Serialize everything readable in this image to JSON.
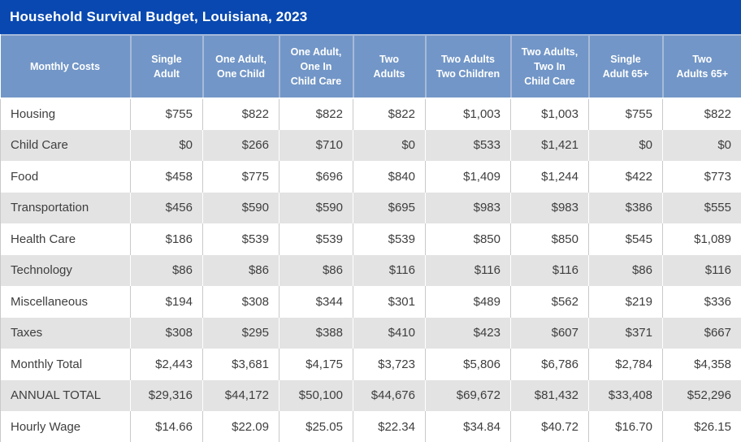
{
  "title": "Household Survival Budget, Louisiana, 2023",
  "chart_data": {
    "type": "table",
    "title": "Household Survival Budget, Louisiana, 2023",
    "columns": [
      "Monthly Costs",
      "Single\nAdult",
      "One Adult,\nOne Child",
      "One Adult,\nOne In\nChild Care",
      "Two\nAdults",
      "Two Adults\nTwo Children",
      "Two Adults,\nTwo In\nChild Care",
      "Single\nAdult 65+",
      "Two\nAdults 65+"
    ],
    "rows": [
      {
        "label": "Housing",
        "values": [
          "$755",
          "$822",
          "$822",
          "$822",
          "$1,003",
          "$1,003",
          "$755",
          "$822"
        ]
      },
      {
        "label": "Child Care",
        "values": [
          "$0",
          "$266",
          "$710",
          "$0",
          "$533",
          "$1,421",
          "$0",
          "$0"
        ]
      },
      {
        "label": "Food",
        "values": [
          "$458",
          "$775",
          "$696",
          "$840",
          "$1,409",
          "$1,244",
          "$422",
          "$773"
        ]
      },
      {
        "label": "Transportation",
        "values": [
          "$456",
          "$590",
          "$590",
          "$695",
          "$983",
          "$983",
          "$386",
          "$555"
        ]
      },
      {
        "label": "Health Care",
        "values": [
          "$186",
          "$539",
          "$539",
          "$539",
          "$850",
          "$850",
          "$545",
          "$1,089"
        ]
      },
      {
        "label": "Technology",
        "values": [
          "$86",
          "$86",
          "$86",
          "$116",
          "$116",
          "$116",
          "$86",
          "$116"
        ]
      },
      {
        "label": "Miscellaneous",
        "values": [
          "$194",
          "$308",
          "$344",
          "$301",
          "$489",
          "$562",
          "$219",
          "$336"
        ]
      },
      {
        "label": "Taxes",
        "values": [
          "$308",
          "$295",
          "$388",
          "$410",
          "$423",
          "$607",
          "$371",
          "$667"
        ]
      },
      {
        "label": "Monthly Total",
        "values": [
          "$2,443",
          "$3,681",
          "$4,175",
          "$3,723",
          "$5,806",
          "$6,786",
          "$2,784",
          "$4,358"
        ]
      },
      {
        "label": "ANNUAL TOTAL",
        "values": [
          "$29,316",
          "$44,172",
          "$50,100",
          "$44,676",
          "$69,672",
          "$81,432",
          "$33,408",
          "$52,296"
        ]
      },
      {
        "label": "Hourly Wage",
        "values": [
          "$14.66",
          "$22.09",
          "$25.05",
          "$22.34",
          "$34.84",
          "$40.72",
          "$16.70",
          "$26.15"
        ]
      }
    ],
    "colors": {
      "title_bar_bg": "#0848b0",
      "header_bg": "#7296c7",
      "stripe_bg": "#e3e3e3",
      "border": "#c9c9c9",
      "text": "#3e3e3e",
      "header_text": "#ffffff"
    }
  }
}
